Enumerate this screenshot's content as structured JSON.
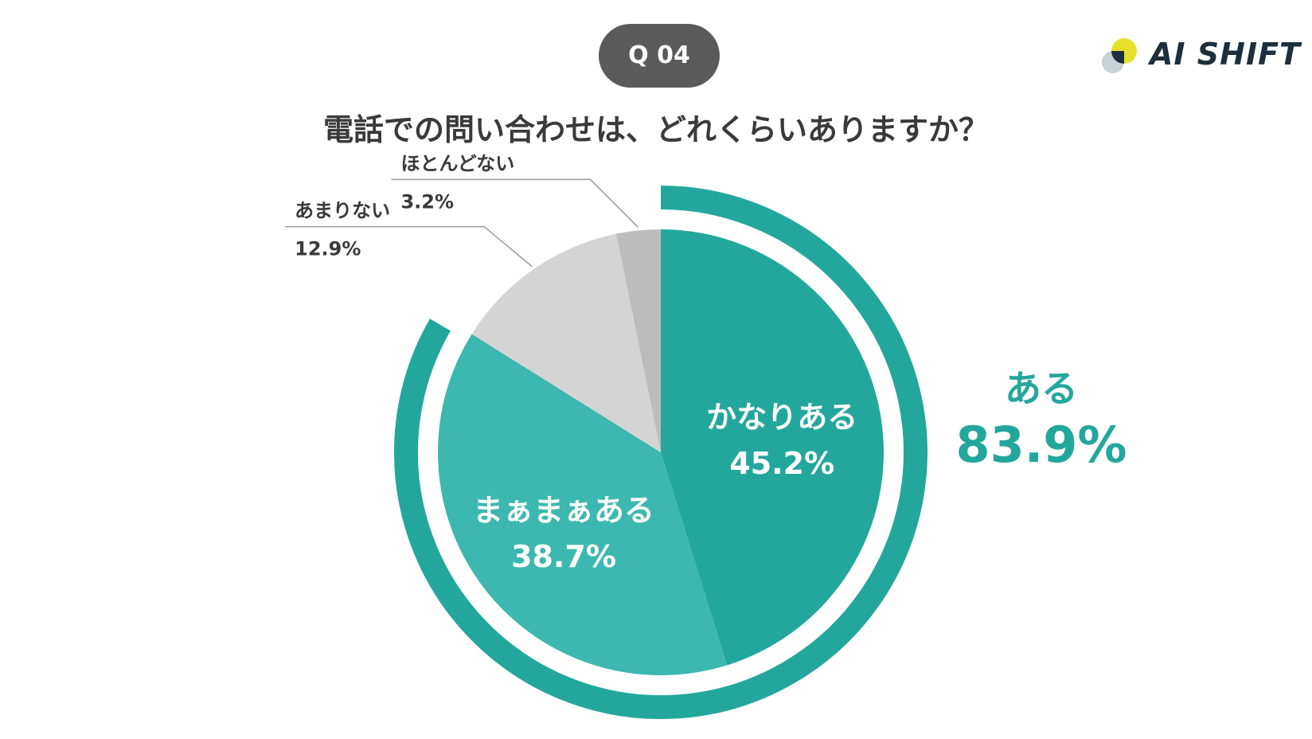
{
  "badge": "Q 04",
  "question": "電話での問い合わせは、どれくらいありますか？",
  "logo": {
    "text": "AI SHIFT",
    "icon": "ai-shift-logo-mark"
  },
  "summary": {
    "label": "ある",
    "value": "83.9%"
  },
  "colors": {
    "teal_dark": "#23a79d",
    "teal_light": "#3cb8b0",
    "gray_light": "#d4d4d4",
    "gray_mid": "#bcbcbc",
    "text_dark": "#3a3a3a",
    "badge_bg": "#5a5a5a"
  },
  "chart_data": {
    "type": "pie",
    "title": "電話での問い合わせは、どれくらいありますか？",
    "slices": [
      {
        "label": "かなりある",
        "value": 45.2,
        "value_label": "45.2%",
        "color": "#23a79d",
        "label_placement": "inside"
      },
      {
        "label": "まぁまぁある",
        "value": 38.7,
        "value_label": "38.7%",
        "color": "#3cb8b0",
        "label_placement": "inside"
      },
      {
        "label": "あまりない",
        "value": 12.9,
        "value_label": "12.9%",
        "color": "#d4d4d4",
        "label_placement": "outside"
      },
      {
        "label": "ほとんどない",
        "value": 3.2,
        "value_label": "3.2%",
        "color": "#bcbcbc",
        "label_placement": "outside"
      }
    ],
    "highlight_arc": {
      "label": "ある",
      "value": 83.9,
      "value_label": "83.9%",
      "covers": [
        "かなりある",
        "まぁまぁある"
      ]
    }
  }
}
